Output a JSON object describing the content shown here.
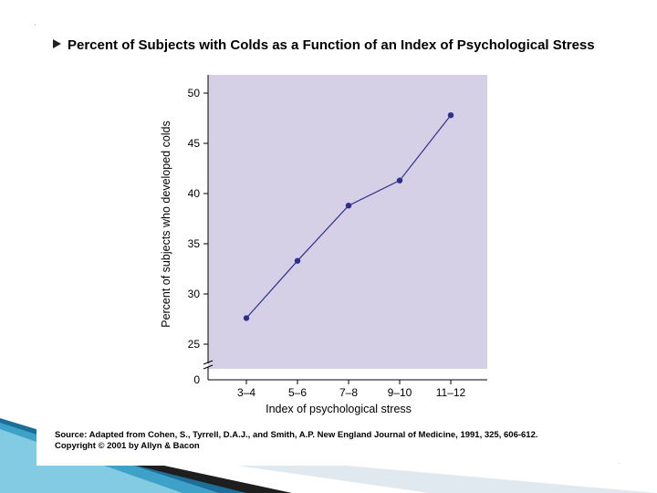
{
  "slide": {
    "title": "Percent of Subjects with Colds as a Function of an Index of Psychological Stress",
    "source": "Source: Adapted from Cohen, S., Tyrrell, D.A.J., and Smith, A.P. New England Journal of Medicine, 1991, 325, 606-612.",
    "copyright": "Copyright © 2001 by Allyn & Bacon"
  },
  "chart_data": {
    "type": "line",
    "title": "",
    "xlabel": "Index of psychological stress",
    "ylabel": "Percent of subjects who developed colds",
    "categories": [
      "3–4",
      "5–6",
      "7–8",
      "9–10",
      "11–12"
    ],
    "values": [
      27.6,
      33.3,
      38.8,
      41.3,
      47.8
    ],
    "ylim": [
      25,
      50
    ],
    "yticks": [
      25,
      30,
      35,
      40,
      45,
      50
    ],
    "axis_break_label": "0",
    "grid": false,
    "legend": "none",
    "colors": {
      "plot_background": "#d6d0e6",
      "line": "#2e2f8c",
      "marker": "#2e2f8c"
    }
  }
}
